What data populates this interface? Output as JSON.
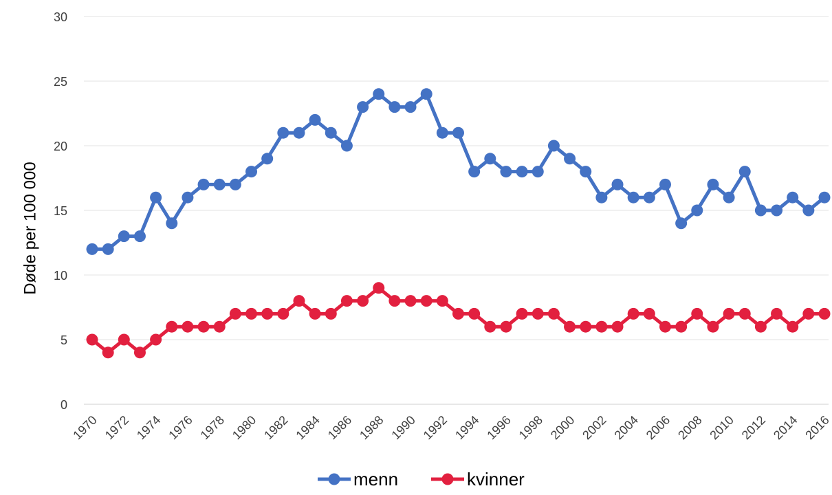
{
  "chart_data": {
    "type": "line",
    "title": "",
    "xlabel": "",
    "ylabel": "Døde per 100 000",
    "ylim": [
      0,
      30
    ],
    "yticks": [
      "0",
      "5",
      "10",
      "15",
      "20",
      "25",
      "30"
    ],
    "grid": true,
    "legend_position": "bottom",
    "xtick_labels": [
      "1970",
      "1972",
      "1974",
      "1976",
      "1978",
      "1980",
      "1982",
      "1984",
      "1986",
      "1988",
      "1990",
      "1992",
      "1994",
      "1996",
      "1998",
      "2000",
      "2002",
      "2004",
      "2006",
      "2008",
      "2010",
      "2012",
      "2014",
      "2016"
    ],
    "x": [
      1970,
      1971,
      1972,
      1973,
      1974,
      1975,
      1976,
      1977,
      1978,
      1979,
      1980,
      1981,
      1982,
      1983,
      1984,
      1985,
      1986,
      1987,
      1988,
      1989,
      1990,
      1991,
      1992,
      1993,
      1994,
      1995,
      1996,
      1997,
      1998,
      1999,
      2000,
      2001,
      2002,
      2003,
      2004,
      2005,
      2006,
      2007,
      2008,
      2009,
      2010,
      2011,
      2012,
      2013,
      2014,
      2015,
      2016
    ],
    "series": [
      {
        "name": "menn",
        "color": "#4472c4",
        "values": [
          12,
          12,
          13,
          13,
          16,
          14,
          16,
          17,
          17,
          17,
          18,
          19,
          21,
          21,
          22,
          21,
          20,
          23,
          24,
          23,
          23,
          24,
          21,
          21,
          18,
          19,
          18,
          18,
          18,
          20,
          19,
          18,
          16,
          17,
          16,
          16,
          17,
          14,
          15,
          17,
          16,
          18,
          15,
          15,
          16,
          15,
          16
        ]
      },
      {
        "name": "kvinner",
        "color": "#e2203f",
        "values": [
          5,
          4,
          5,
          4,
          5,
          6,
          6,
          6,
          6,
          7,
          7,
          7,
          7,
          8,
          7,
          7,
          8,
          8,
          9,
          8,
          8,
          8,
          8,
          7,
          7,
          6,
          6,
          7,
          7,
          7,
          6,
          6,
          6,
          6,
          7,
          7,
          6,
          6,
          7,
          6,
          7,
          7,
          6,
          7,
          6,
          7,
          7
        ]
      }
    ]
  }
}
